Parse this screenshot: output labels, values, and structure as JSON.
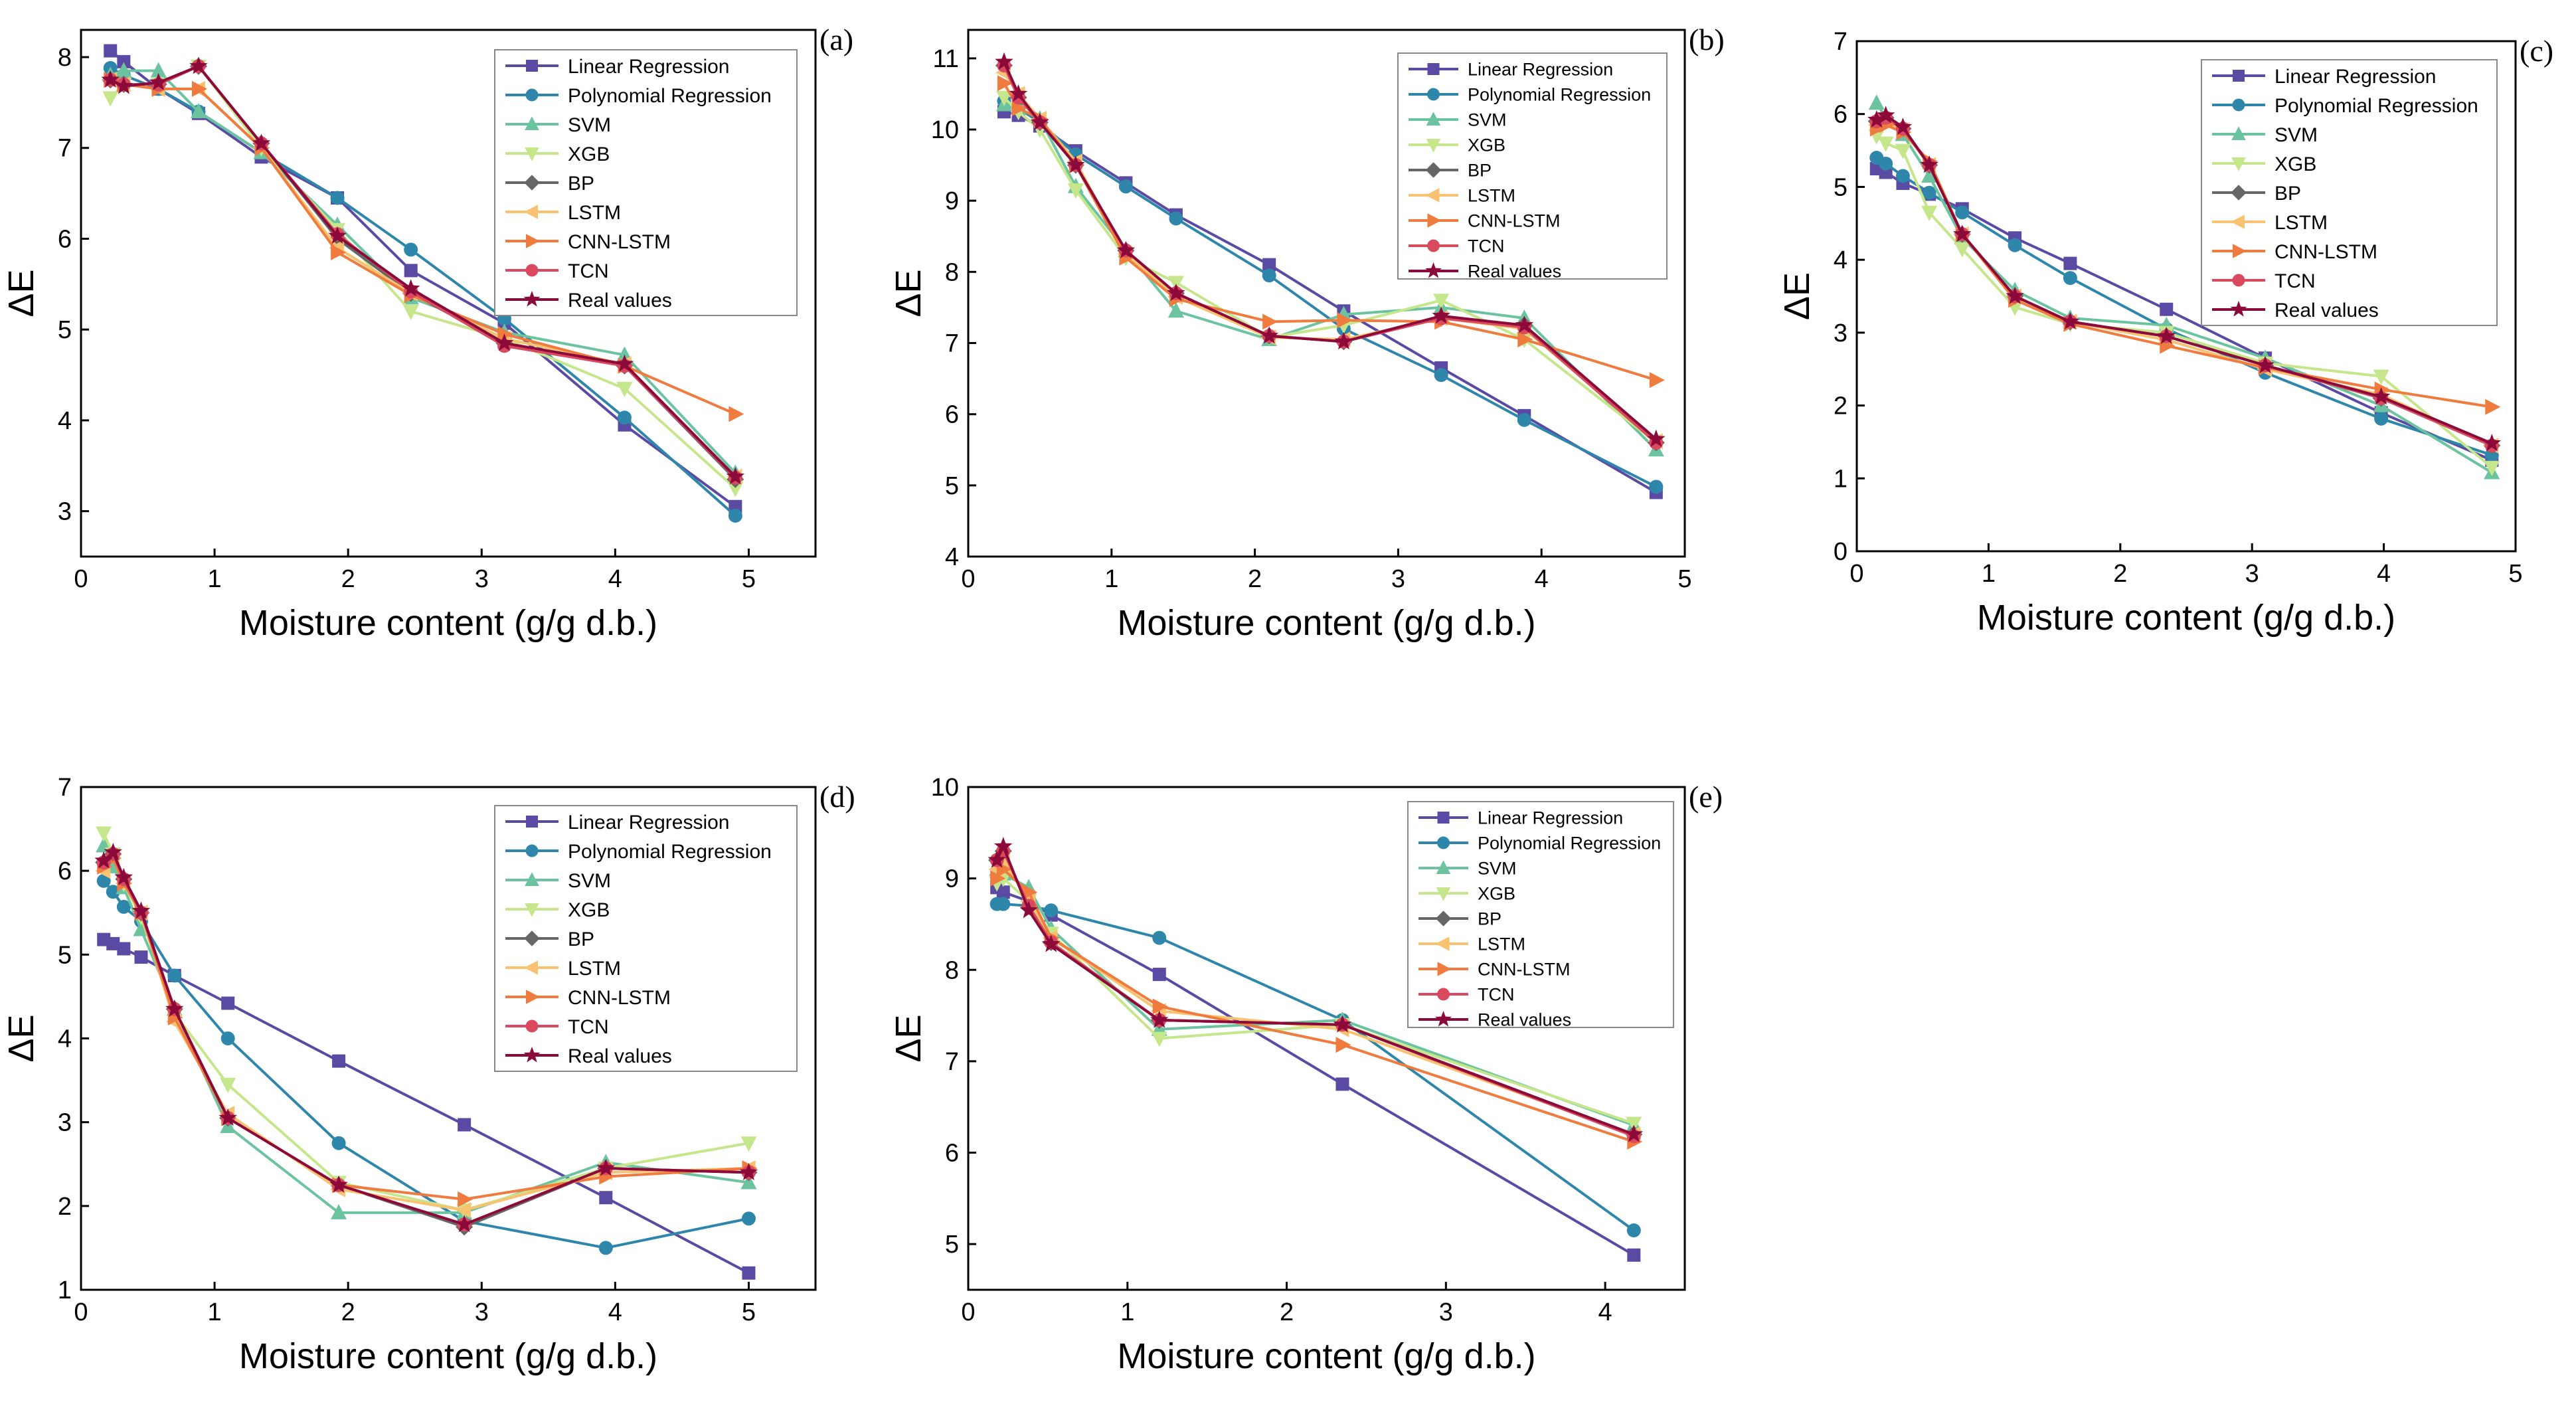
{
  "series_styles": [
    {
      "name": "Linear Regression",
      "color": "#5b4aa3",
      "marker": "square"
    },
    {
      "name": "Polynomial Regression",
      "color": "#2e86ab",
      "marker": "circle"
    },
    {
      "name": "SVM",
      "color": "#6cc3a0",
      "marker": "triangle-up"
    },
    {
      "name": "XGB",
      "color": "#c5e68a",
      "marker": "triangle-down"
    },
    {
      "name": "BP",
      "color": "#666666",
      "marker": "diamond"
    },
    {
      "name": "LSTM",
      "color": "#f9c270",
      "marker": "triangle-left"
    },
    {
      "name": "CNN-LSTM",
      "color": "#f07b3f",
      "marker": "triangle-right"
    },
    {
      "name": "TCN",
      "color": "#d94a5f",
      "marker": "circle"
    },
    {
      "name": "Real values",
      "color": "#8b0a3a",
      "marker": "star"
    }
  ],
  "chart_data": [
    {
      "type": "line",
      "panel": "(a)",
      "xlabel": "Moisture content (g/g d.b.)",
      "ylabel": "ΔE",
      "xlim": [
        0,
        5.5
      ],
      "ylim": [
        2.5,
        8.3
      ],
      "xticks": [
        0,
        1,
        2,
        3,
        4,
        5
      ],
      "yticks": [
        3,
        4,
        5,
        6,
        7,
        8
      ],
      "x": [
        0.22,
        0.32,
        0.58,
        0.88,
        1.35,
        1.92,
        2.47,
        3.17,
        4.07,
        4.9
      ],
      "series": [
        {
          "name": "Linear Regression",
          "values": [
            8.07,
            7.95,
            7.65,
            7.38,
            6.9,
            6.45,
            5.65,
            5.07,
            3.95,
            3.05
          ]
        },
        {
          "name": "Polynomial Regression",
          "values": [
            7.88,
            7.8,
            7.65,
            7.4,
            6.95,
            6.45,
            5.88,
            5.12,
            4.03,
            2.95
          ]
        },
        {
          "name": "SVM",
          "values": [
            7.8,
            7.85,
            7.85,
            7.4,
            6.95,
            6.15,
            5.35,
            4.97,
            4.72,
            3.42
          ]
        },
        {
          "name": "XGB",
          "values": [
            7.55,
            7.7,
            7.7,
            7.9,
            7.0,
            6.1,
            5.2,
            4.9,
            4.35,
            3.25
          ]
        },
        {
          "name": "BP",
          "values": [
            7.75,
            7.7,
            7.7,
            7.9,
            7.05,
            6.0,
            5.4,
            4.85,
            4.6,
            3.35
          ]
        },
        {
          "name": "LSTM",
          "values": [
            7.75,
            7.7,
            7.65,
            7.65,
            7.0,
            5.9,
            5.4,
            4.9,
            4.62,
            3.38
          ]
        },
        {
          "name": "CNN-LSTM",
          "values": [
            7.75,
            7.7,
            7.65,
            7.65,
            7.0,
            5.85,
            5.38,
            4.95,
            4.6,
            4.07
          ]
        },
        {
          "name": "TCN",
          "values": [
            7.75,
            7.7,
            7.7,
            7.9,
            7.05,
            6.05,
            5.42,
            4.82,
            4.6,
            3.37
          ]
        },
        {
          "name": "Real values",
          "values": [
            7.75,
            7.68,
            7.72,
            7.9,
            7.05,
            6.03,
            5.45,
            4.85,
            4.62,
            3.38
          ]
        }
      ],
      "legend": {
        "position": "top-right",
        "font": 30
      }
    },
    {
      "type": "line",
      "panel": "(b)",
      "xlabel": "Moisture content (g/g d.b.)",
      "ylabel": "ΔE",
      "xlim": [
        0,
        5.0
      ],
      "ylim": [
        4,
        11.4
      ],
      "xticks": [
        0,
        1,
        2,
        3,
        4,
        5
      ],
      "yticks": [
        4,
        5,
        6,
        7,
        8,
        9,
        10,
        11
      ],
      "x": [
        0.25,
        0.35,
        0.5,
        0.75,
        1.1,
        1.45,
        2.1,
        2.62,
        3.3,
        3.88,
        4.8
      ],
      "series": [
        {
          "name": "Linear Regression",
          "values": [
            10.25,
            10.2,
            10.05,
            9.7,
            9.25,
            8.8,
            8.1,
            7.45,
            6.65,
            5.98,
            4.9
          ]
        },
        {
          "name": "Polynomial Regression",
          "values": [
            10.4,
            10.3,
            10.1,
            9.65,
            9.2,
            8.75,
            7.95,
            7.2,
            6.55,
            5.92,
            4.98
          ]
        },
        {
          "name": "SVM",
          "values": [
            10.35,
            10.3,
            10.15,
            9.2,
            8.3,
            7.45,
            7.05,
            7.4,
            7.5,
            7.35,
            5.5
          ]
        },
        {
          "name": "XGB",
          "values": [
            10.45,
            10.25,
            10.0,
            9.15,
            8.2,
            7.85,
            7.08,
            7.25,
            7.6,
            7.05,
            5.6
          ]
        },
        {
          "name": "BP",
          "values": [
            10.9,
            10.45,
            10.1,
            9.5,
            8.3,
            7.7,
            7.1,
            7.02,
            7.35,
            7.25,
            5.6
          ]
        },
        {
          "name": "LSTM",
          "values": [
            10.8,
            10.5,
            10.15,
            9.55,
            8.25,
            7.65,
            7.08,
            7.05,
            7.35,
            7.2,
            5.62
          ]
        },
        {
          "name": "CNN-LSTM",
          "values": [
            10.65,
            10.3,
            10.15,
            9.5,
            8.2,
            7.62,
            7.3,
            7.32,
            7.3,
            7.05,
            6.48
          ]
        },
        {
          "name": "TCN",
          "values": [
            10.9,
            10.45,
            10.1,
            9.5,
            8.3,
            7.7,
            7.1,
            7.02,
            7.35,
            7.22,
            5.6
          ]
        },
        {
          "name": "Real values",
          "values": [
            10.95,
            10.5,
            10.1,
            9.5,
            8.3,
            7.7,
            7.1,
            7.02,
            7.38,
            7.25,
            5.65
          ]
        }
      ],
      "legend": {
        "position": "top-right",
        "font": 27
      }
    },
    {
      "type": "line",
      "panel": "(c)",
      "xlabel": "Moisture content (g/g d.b.)",
      "ylabel": "ΔE",
      "xlim": [
        0,
        5.0
      ],
      "ylim": [
        0,
        7
      ],
      "xticks": [
        0,
        1,
        2,
        3,
        4,
        5
      ],
      "yticks": [
        0,
        1,
        2,
        3,
        4,
        5,
        6,
        7
      ],
      "x": [
        0.15,
        0.22,
        0.35,
        0.55,
        0.8,
        1.2,
        1.62,
        2.35,
        3.1,
        3.98,
        4.82
      ],
      "series": [
        {
          "name": "Linear Regression",
          "values": [
            5.25,
            5.2,
            5.05,
            4.9,
            4.7,
            4.3,
            3.95,
            3.32,
            2.65,
            1.9,
            1.25
          ]
        },
        {
          "name": "Polynomial Regression",
          "values": [
            5.4,
            5.32,
            5.15,
            4.92,
            4.65,
            4.2,
            3.75,
            3.05,
            2.45,
            1.82,
            1.32
          ]
        },
        {
          "name": "SVM",
          "values": [
            6.15,
            5.95,
            5.72,
            5.15,
            4.3,
            3.58,
            3.2,
            3.1,
            2.65,
            2.0,
            1.08
          ]
        },
        {
          "name": "XGB",
          "values": [
            5.7,
            5.6,
            5.5,
            4.65,
            4.15,
            3.35,
            3.12,
            3.0,
            2.58,
            2.4,
            1.15
          ]
        },
        {
          "name": "BP",
          "values": [
            5.9,
            5.95,
            5.8,
            5.3,
            4.35,
            3.5,
            3.15,
            2.95,
            2.55,
            2.1,
            1.45
          ]
        },
        {
          "name": "LSTM",
          "values": [
            5.85,
            5.9,
            5.78,
            5.3,
            4.35,
            3.5,
            3.15,
            2.9,
            2.5,
            2.15,
            1.45
          ]
        },
        {
          "name": "CNN-LSTM",
          "values": [
            5.8,
            5.85,
            5.75,
            5.35,
            4.35,
            3.45,
            3.12,
            2.82,
            2.52,
            2.22,
            1.98
          ]
        },
        {
          "name": "TCN",
          "values": [
            5.9,
            5.95,
            5.8,
            5.3,
            4.35,
            3.5,
            3.15,
            2.95,
            2.55,
            2.1,
            1.45
          ]
        },
        {
          "name": "Real values",
          "values": [
            5.92,
            5.98,
            5.82,
            5.3,
            4.35,
            3.5,
            3.15,
            2.95,
            2.55,
            2.12,
            1.48
          ]
        }
      ],
      "legend": {
        "position": "top-right",
        "font": 30
      }
    },
    {
      "type": "line",
      "panel": "(d)",
      "xlabel": "Moisture content (g/g d.b.)",
      "ylabel": "ΔE",
      "xlim": [
        0,
        5.5
      ],
      "ylim": [
        1,
        7
      ],
      "xticks": [
        0,
        1,
        2,
        3,
        4,
        5
      ],
      "yticks": [
        1,
        2,
        3,
        4,
        5,
        6,
        7
      ],
      "x": [
        0.17,
        0.24,
        0.32,
        0.45,
        0.7,
        1.1,
        1.93,
        2.87,
        3.93,
        5.0
      ],
      "series": [
        {
          "name": "Linear Regression",
          "values": [
            5.18,
            5.13,
            5.07,
            4.97,
            4.75,
            4.42,
            3.73,
            2.97,
            2.1,
            1.2
          ]
        },
        {
          "name": "Polynomial Regression",
          "values": [
            5.88,
            5.75,
            5.57,
            5.4,
            4.75,
            4.0,
            2.75,
            1.82,
            1.5,
            1.85
          ]
        },
        {
          "name": "SVM",
          "values": [
            6.3,
            6.05,
            5.8,
            5.3,
            4.35,
            2.95,
            1.92,
            1.92,
            2.52,
            2.28
          ]
        },
        {
          "name": "XGB",
          "values": [
            6.45,
            6.2,
            5.85,
            5.45,
            4.3,
            3.45,
            2.28,
            1.95,
            2.45,
            2.75
          ]
        },
        {
          "name": "BP",
          "values": [
            6.1,
            6.2,
            5.9,
            5.5,
            4.35,
            3.05,
            2.25,
            1.75,
            2.45,
            2.4
          ]
        },
        {
          "name": "LSTM",
          "values": [
            6.0,
            6.15,
            5.85,
            5.5,
            4.2,
            3.1,
            2.2,
            1.95,
            2.4,
            2.45
          ]
        },
        {
          "name": "CNN-LSTM",
          "values": [
            6.05,
            6.15,
            5.85,
            5.5,
            4.25,
            3.05,
            2.25,
            2.08,
            2.35,
            2.45
          ]
        },
        {
          "name": "TCN",
          "values": [
            6.1,
            6.2,
            5.9,
            5.5,
            4.35,
            3.05,
            2.25,
            1.78,
            2.45,
            2.4
          ]
        },
        {
          "name": "Real values",
          "values": [
            6.12,
            6.22,
            5.92,
            5.52,
            4.35,
            3.05,
            2.25,
            1.78,
            2.45,
            2.4
          ]
        }
      ],
      "legend": {
        "position": "top-right",
        "font": 30
      }
    },
    {
      "type": "line",
      "panel": "(e)",
      "xlabel": "Moisture content (g/g d.b.)",
      "ylabel": "ΔE",
      "xlim": [
        0,
        4.5
      ],
      "ylim": [
        4.5,
        10
      ],
      "xticks": [
        0,
        1,
        2,
        3,
        4
      ],
      "yticks": [
        5,
        6,
        7,
        8,
        9,
        10
      ],
      "x": [
        0.18,
        0.22,
        0.38,
        0.52,
        1.2,
        2.35,
        4.18
      ],
      "series": [
        {
          "name": "Linear Regression",
          "values": [
            8.9,
            8.85,
            8.75,
            8.6,
            7.95,
            6.75,
            4.88
          ]
        },
        {
          "name": "Polynomial Regression",
          "values": [
            8.72,
            8.72,
            8.7,
            8.65,
            8.35,
            7.45,
            5.15
          ]
        },
        {
          "name": "SVM",
          "values": [
            9.1,
            9.05,
            8.9,
            8.45,
            7.35,
            7.45,
            6.3
          ]
        },
        {
          "name": "XGB",
          "values": [
            8.95,
            9.0,
            8.75,
            8.4,
            7.25,
            7.4,
            6.32
          ]
        },
        {
          "name": "BP",
          "values": [
            9.2,
            9.3,
            8.7,
            8.3,
            7.45,
            7.4,
            6.2
          ]
        },
        {
          "name": "LSTM",
          "values": [
            9.1,
            9.2,
            8.75,
            8.35,
            7.55,
            7.35,
            6.2
          ]
        },
        {
          "name": "CNN-LSTM",
          "values": [
            9.0,
            9.1,
            8.85,
            8.35,
            7.6,
            7.18,
            6.12
          ]
        },
        {
          "name": "TCN",
          "values": [
            9.2,
            9.3,
            8.7,
            8.3,
            7.45,
            7.4,
            6.18
          ]
        },
        {
          "name": "Real values",
          "values": [
            9.2,
            9.35,
            8.65,
            8.28,
            7.45,
            7.4,
            6.2
          ]
        }
      ],
      "legend": {
        "position": "top-right",
        "font": 27
      }
    }
  ]
}
